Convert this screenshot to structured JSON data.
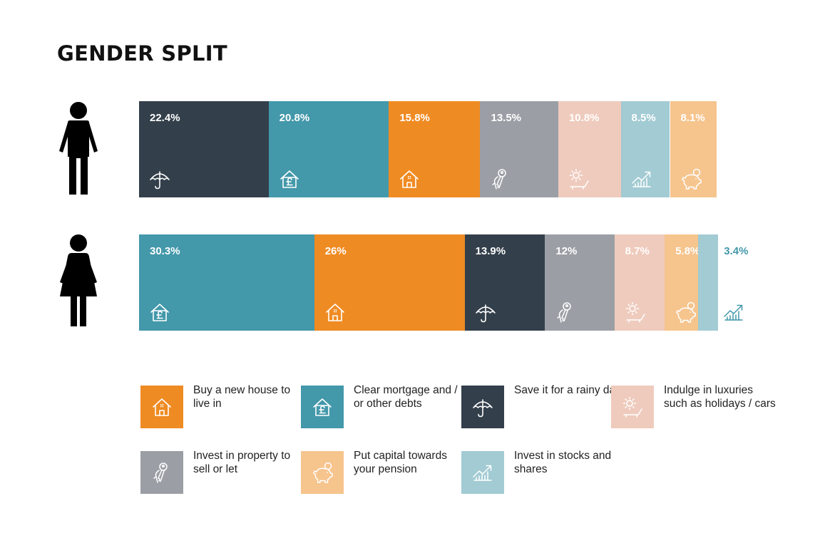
{
  "title": "GENDER SPLIT",
  "colors": {
    "house": "#EF8B23",
    "mortgage": "#4398AA",
    "rainy": "#333F4A",
    "luxury": "#EFCBBD",
    "property": "#9B9FA5",
    "pension": "#F6C48D",
    "stocks": "#A2CBD3"
  },
  "icons": {
    "house": "house-icon",
    "mortgage": "house-pound-icon",
    "rainy": "umbrella-icon",
    "luxury": "sun-lounger-icon",
    "property": "keys-icon",
    "pension": "piggy-bank-icon",
    "stocks": "rising-chart-icon"
  },
  "legend": [
    {
      "key": "house",
      "label": "Buy a new house to live in"
    },
    {
      "key": "mortgage",
      "label": "Clear mortgage and / or other debts"
    },
    {
      "key": "rainy",
      "label": "Save it for a rainy day"
    },
    {
      "key": "luxury",
      "label": "Indulge in luxuries such as holidays / cars"
    },
    {
      "key": "property",
      "label": "Invest in property to sell or let"
    },
    {
      "key": "pension",
      "label": "Put capital towards your pension"
    },
    {
      "key": "stocks",
      "label": "Invest in stocks and shares"
    }
  ],
  "chart_data": {
    "type": "bar",
    "orientation": "horizontal-stacked",
    "unit": "%",
    "rows": [
      {
        "figure": "male",
        "segments": [
          {
            "key": "rainy",
            "value": 22.4,
            "label": "22.4%"
          },
          {
            "key": "mortgage",
            "value": 20.8,
            "label": "20.8%"
          },
          {
            "key": "house",
            "value": 15.8,
            "label": "15.8%"
          },
          {
            "key": "property",
            "value": 13.5,
            "label": "13.5%"
          },
          {
            "key": "luxury",
            "value": 10.8,
            "label": "10.8%"
          },
          {
            "key": "stocks",
            "value": 8.5,
            "label": "8.5%"
          },
          {
            "key": "pension",
            "value": 8.1,
            "label": "8.1%"
          }
        ]
      },
      {
        "figure": "female",
        "segments": [
          {
            "key": "mortgage",
            "value": 30.3,
            "label": "30.3%"
          },
          {
            "key": "house",
            "value": 26,
            "label": "26%"
          },
          {
            "key": "rainy",
            "value": 13.9,
            "label": "13.9%"
          },
          {
            "key": "property",
            "value": 12,
            "label": "12%"
          },
          {
            "key": "luxury",
            "value": 8.7,
            "label": "8.7%"
          },
          {
            "key": "pension",
            "value": 5.8,
            "label": "5.8%"
          },
          {
            "key": "stocks",
            "value": 3.4,
            "label": "3.4%"
          }
        ]
      }
    ]
  }
}
